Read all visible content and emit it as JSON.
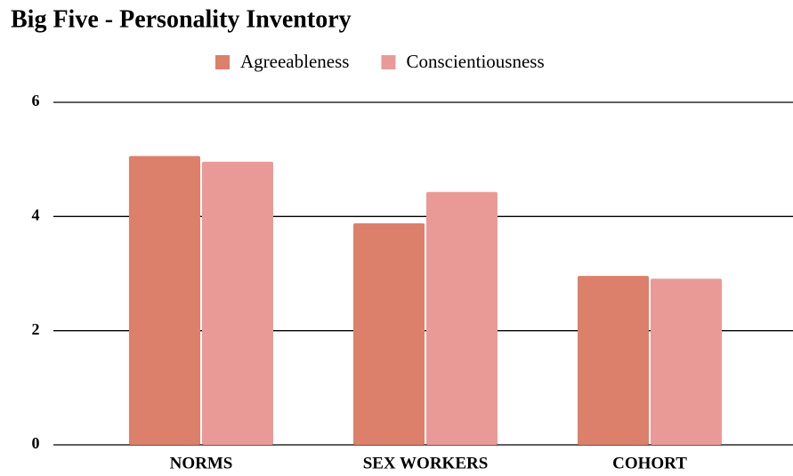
{
  "chart_data": {
    "type": "bar",
    "title": "Big Five - Personality Inventory",
    "categories": [
      "NORMS",
      "SEX WORKERS",
      "COHORT"
    ],
    "series": [
      {
        "name": "Agreeableness",
        "color": "#dc7f6b",
        "values": [
          5.06,
          3.88,
          2.96
        ]
      },
      {
        "name": "Conscientiousness",
        "color": "#e99a97",
        "values": [
          4.96,
          4.43,
          2.91
        ]
      }
    ],
    "ylim": [
      0,
      6
    ],
    "yticks": [
      0,
      2,
      4,
      6
    ],
    "grid": true,
    "legend": "top"
  }
}
